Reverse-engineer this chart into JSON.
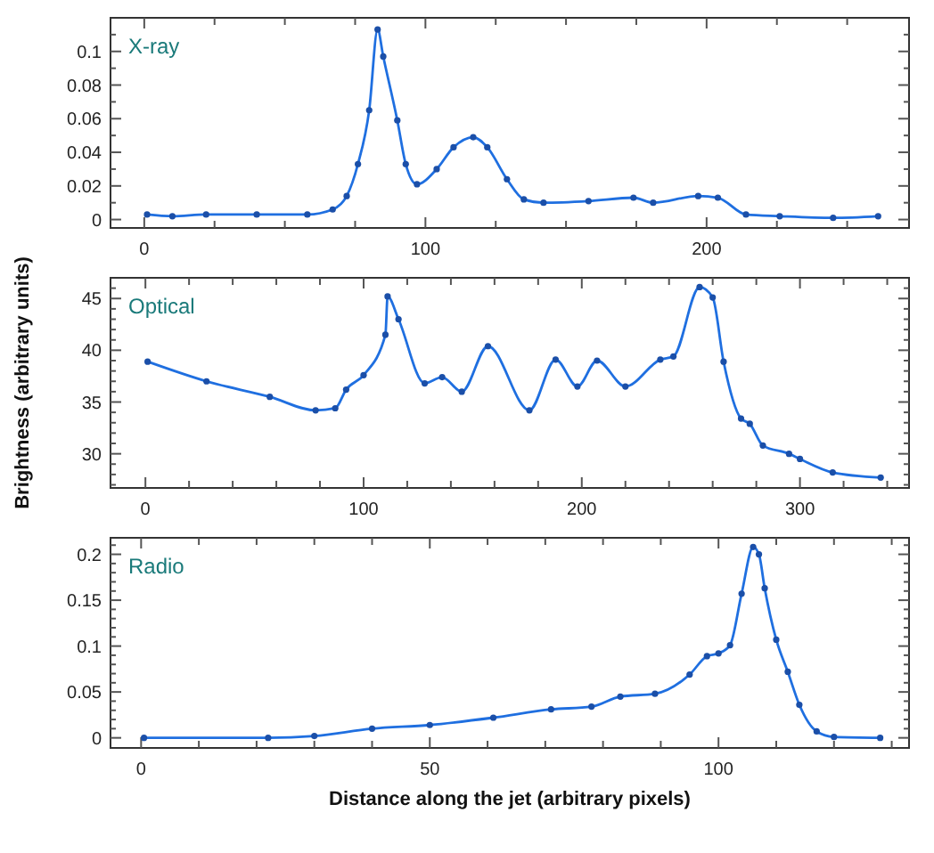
{
  "chart_data": [
    {
      "type": "line",
      "annotations": [
        "X-ray"
      ],
      "marker": "circle",
      "line_style": "solid",
      "xlim": [
        -12,
        272
      ],
      "ylim": [
        -0.005,
        0.12
      ],
      "xticks": [
        0,
        {
          "value": 25,
          "label": null
        },
        {
          "value": 50,
          "label": null
        },
        {
          "value": 75,
          "label": null
        },
        100,
        {
          "value": 125,
          "label": null
        },
        {
          "value": 150,
          "label": null
        },
        {
          "value": 175,
          "label": null
        },
        200,
        {
          "value": 225,
          "label": null
        },
        {
          "value": 250,
          "label": null
        }
      ],
      "yticks": [
        0,
        {
          "value": 0.01,
          "label": null
        },
        0.02,
        {
          "value": 0.03,
          "label": null
        },
        0.04,
        {
          "value": 0.05,
          "label": null
        },
        0.06,
        {
          "value": 0.07,
          "label": null
        },
        0.08,
        {
          "value": 0.09,
          "label": null
        },
        0.1,
        {
          "value": 0.11,
          "label": null
        }
      ],
      "series": [
        {
          "color": "#1f6fe0",
          "x": [
            1,
            10,
            22,
            40,
            58,
            67,
            72,
            76,
            80,
            83,
            85,
            90,
            93,
            97,
            104,
            110,
            117,
            122,
            129,
            135,
            142,
            158,
            174,
            181,
            197,
            204,
            214,
            226,
            245,
            261
          ],
          "values": [
            0.003,
            0.002,
            0.003,
            0.003,
            0.003,
            0.006,
            0.014,
            0.033,
            0.065,
            0.113,
            0.097,
            0.059,
            0.033,
            0.021,
            0.03,
            0.043,
            0.049,
            0.043,
            0.024,
            0.012,
            0.01,
            0.011,
            0.013,
            0.01,
            0.014,
            0.013,
            0.003,
            0.002,
            0.001,
            0.002
          ]
        }
      ]
    },
    {
      "type": "line",
      "annotations": [
        "Optical"
      ],
      "ylabel": "Brightness (arbitrary units)",
      "marker": "circle",
      "line_style": "solid",
      "xlim": [
        -16,
        350
      ],
      "ylim": [
        26.7,
        47
      ],
      "xticks": [
        0,
        {
          "value": 20,
          "label": null
        },
        {
          "value": 40,
          "label": null
        },
        {
          "value": 60,
          "label": null
        },
        {
          "value": 80,
          "label": null
        },
        100,
        {
          "value": 120,
          "label": null
        },
        {
          "value": 140,
          "label": null
        },
        {
          "value": 160,
          "label": null
        },
        {
          "value": 180,
          "label": null
        },
        200,
        {
          "value": 220,
          "label": null
        },
        {
          "value": 240,
          "label": null
        },
        {
          "value": 260,
          "label": null
        },
        {
          "value": 280,
          "label": null
        },
        300,
        {
          "value": 320,
          "label": null
        },
        {
          "value": 340,
          "label": null
        }
      ],
      "yticks": [
        {
          "value": 27,
          "label": null
        },
        {
          "value": 28,
          "label": null
        },
        {
          "value": 29,
          "label": null
        },
        30,
        {
          "value": 31,
          "label": null
        },
        {
          "value": 32,
          "label": null
        },
        {
          "value": 33,
          "label": null
        },
        {
          "value": 34,
          "label": null
        },
        35,
        {
          "value": 36,
          "label": null
        },
        {
          "value": 37,
          "label": null
        },
        {
          "value": 38,
          "label": null
        },
        {
          "value": 39,
          "label": null
        },
        40,
        {
          "value": 41,
          "label": null
        },
        {
          "value": 42,
          "label": null
        },
        {
          "value": 43,
          "label": null
        },
        {
          "value": 44,
          "label": null
        },
        45,
        {
          "value": 46,
          "label": null
        }
      ],
      "series": [
        {
          "color": "#1f6fe0",
          "x": [
            1,
            28,
            57,
            78,
            87,
            92,
            100,
            110,
            111,
            116,
            128,
            136,
            145,
            157,
            176,
            188,
            198,
            207,
            220,
            236,
            242,
            254,
            260,
            265,
            273,
            277,
            283,
            295,
            300,
            315,
            337
          ],
          "values": [
            38.9,
            37.0,
            35.5,
            34.2,
            34.4,
            36.2,
            37.6,
            41.5,
            45.2,
            43.0,
            36.8,
            37.4,
            36.0,
            40.4,
            34.2,
            39.1,
            36.5,
            39.0,
            36.5,
            39.1,
            39.4,
            46.1,
            45.1,
            38.9,
            33.4,
            32.9,
            30.8,
            30.0,
            29.5,
            28.2,
            27.7
          ]
        }
      ]
    },
    {
      "type": "line",
      "annotations": [
        "Radio"
      ],
      "xlabel": "Distance along the jet (arbitrary pixels)",
      "marker": "circle",
      "line_style": "solid",
      "xlim": [
        -5.3,
        133
      ],
      "ylim": [
        -0.011,
        0.218
      ],
      "xticks": [
        0,
        {
          "value": 10,
          "label": null
        },
        {
          "value": 20,
          "label": null
        },
        {
          "value": 30,
          "label": null
        },
        {
          "value": 40,
          "label": null
        },
        50,
        {
          "value": 60,
          "label": null
        },
        {
          "value": 70,
          "label": null
        },
        {
          "value": 80,
          "label": null
        },
        {
          "value": 90,
          "label": null
        },
        100,
        {
          "value": 110,
          "label": null
        },
        {
          "value": 120,
          "label": null
        },
        {
          "value": 130,
          "label": null
        }
      ],
      "yticks": [
        0,
        {
          "value": 0.01,
          "label": null
        },
        {
          "value": 0.02,
          "label": null
        },
        {
          "value": 0.03,
          "label": null
        },
        {
          "value": 0.04,
          "label": null
        },
        0.05,
        {
          "value": 0.06,
          "label": null
        },
        {
          "value": 0.07,
          "label": null
        },
        {
          "value": 0.08,
          "label": null
        },
        {
          "value": 0.09,
          "label": null
        },
        0.1,
        {
          "value": 0.11,
          "label": null
        },
        {
          "value": 0.12,
          "label": null
        },
        {
          "value": 0.13,
          "label": null
        },
        {
          "value": 0.14,
          "label": null
        },
        0.15,
        {
          "value": 0.16,
          "label": null
        },
        {
          "value": 0.17,
          "label": null
        },
        {
          "value": 0.18,
          "label": null
        },
        {
          "value": 0.19,
          "label": null
        },
        0.2,
        {
          "value": 0.21,
          "label": null
        }
      ],
      "series": [
        {
          "color": "#1f6fe0",
          "x": [
            0.5,
            22,
            30,
            40,
            50,
            61,
            71,
            78,
            83,
            89,
            95,
            98,
            100,
            102,
            104,
            106,
            107,
            108,
            110,
            112,
            114,
            117,
            120,
            128
          ],
          "values": [
            0,
            0,
            0.002,
            0.01,
            0.014,
            0.022,
            0.031,
            0.034,
            0.045,
            0.048,
            0.069,
            0.089,
            0.092,
            0.101,
            0.157,
            0.208,
            0.2,
            0.163,
            0.107,
            0.072,
            0.036,
            0.007,
            0.001,
            0
          ]
        }
      ]
    }
  ]
}
